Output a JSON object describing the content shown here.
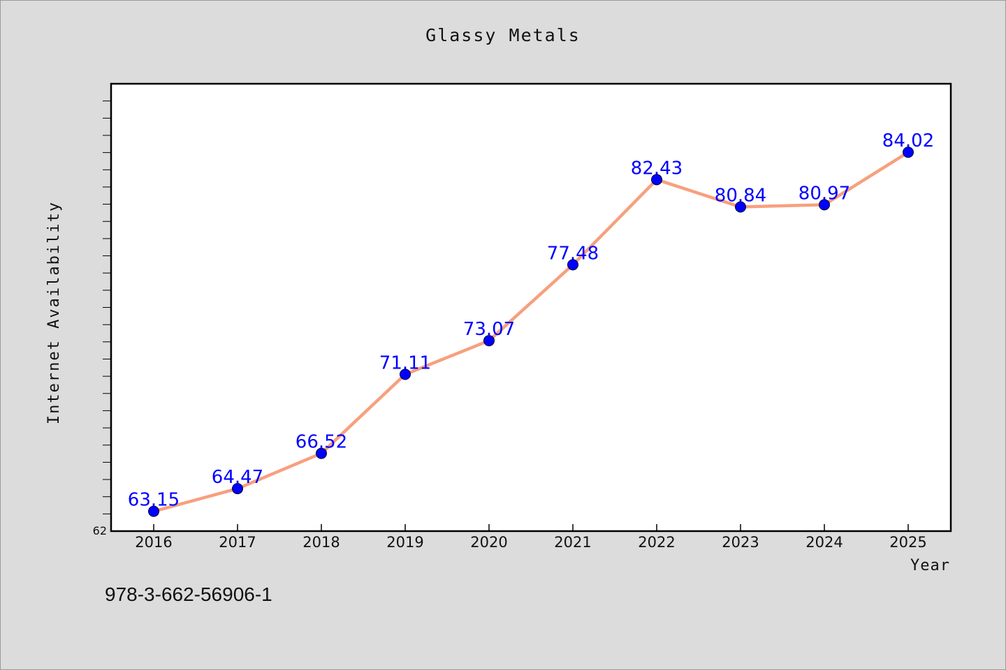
{
  "title": "Glassy Metals",
  "footer_text": "978-3-662-56906-1",
  "colors": {
    "background": "#dcdcdc",
    "plot_background": "#ffffff",
    "line": "#f7a07e",
    "marker": "#0000ff",
    "label": "#0000ff"
  },
  "chart_data": {
    "type": "line",
    "title": "Glassy Metals",
    "xlabel": "Year",
    "ylabel": "Internet Availability",
    "categories": [
      "2016",
      "2017",
      "2018",
      "2019",
      "2020",
      "2021",
      "2022",
      "2023",
      "2024",
      "2025"
    ],
    "series": [
      {
        "values": [
          63.15,
          64.47,
          66.52,
          71.11,
          73.07,
          77.48,
          82.43,
          80.84,
          80.97,
          84.02
        ]
      }
    ],
    "data_labels": [
      "63.15",
      "64.47",
      "66.52",
      "71.11",
      "73.07",
      "77.48",
      "82.43",
      "80.84",
      "80.97",
      "84.02"
    ],
    "y_tick_labels": [
      "62"
    ],
    "ylim": [
      62,
      88
    ],
    "y_minor_step": 1,
    "grid": false,
    "legend": "none"
  }
}
